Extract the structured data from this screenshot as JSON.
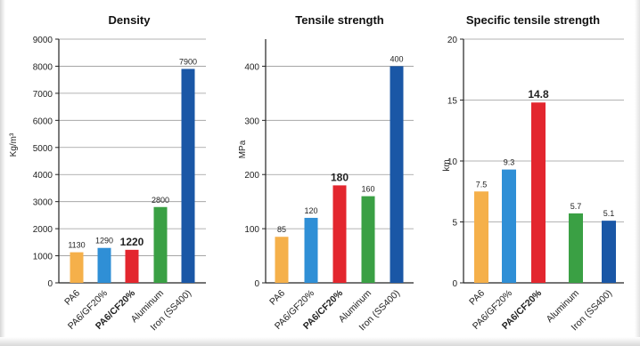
{
  "chart_data": [
    {
      "type": "bar",
      "title": "Density",
      "ylabel": "Kg/m³",
      "ylim": [
        0,
        9000
      ],
      "yticks": [
        "0",
        "1000",
        "2000",
        "3000",
        "4000",
        "5000",
        "6000",
        "7000",
        "8000",
        "9000"
      ],
      "grid": "horizontal",
      "categories": [
        "PA6",
        "PA6/GF20%",
        "PA6/CF20%",
        "Aluminum",
        "Iron (SS400)"
      ],
      "values": [
        1130,
        1290,
        1220,
        2800,
        7900
      ],
      "value_labels": [
        "1130",
        "1290",
        "1220",
        "2800",
        "7900"
      ],
      "highlight_index": 2,
      "colors": [
        "#f5b04a",
        "#2f8fd6",
        "#e3262e",
        "#3aa044",
        "#1a57a6"
      ]
    },
    {
      "type": "bar",
      "title": "Tensile strength",
      "ylabel": "MPa",
      "ylim": [
        0,
        450
      ],
      "yticks": [
        "0",
        "100",
        "200",
        "300",
        "400"
      ],
      "ytick_values": [
        0,
        100,
        200,
        300,
        400
      ],
      "grid": "horizontal",
      "categories": [
        "PA6",
        "PA6/GF20%",
        "PA6/CF20%",
        "Aluminum",
        "Iron (SS400)"
      ],
      "values": [
        85,
        120,
        180,
        160,
        400
      ],
      "value_labels": [
        "85",
        "120",
        "180",
        "160",
        "400"
      ],
      "highlight_index": 2,
      "colors": [
        "#f5b04a",
        "#2f8fd6",
        "#e3262e",
        "#3aa044",
        "#1a57a6"
      ]
    },
    {
      "type": "bar",
      "title": "Specific tensile strength",
      "ylabel": "km",
      "ylim": [
        0,
        20
      ],
      "yticks": [
        "0",
        "5",
        "10",
        "15",
        "20"
      ],
      "ytick_values": [
        0,
        5,
        10,
        15,
        20
      ],
      "grid": "horizontal",
      "categories": [
        "PA6",
        "PA6/GF20%",
        "PA6/CF20%",
        "Aluminum",
        "Iron (SS400)"
      ],
      "values": [
        7.5,
        9.3,
        14.8,
        5.7,
        5.1
      ],
      "value_labels": [
        "7.5",
        "9.3",
        "14.8",
        "5.7",
        "5.1"
      ],
      "highlight_index": 2,
      "colors": [
        "#f5b04a",
        "#2f8fd6",
        "#e3262e",
        "#3aa044",
        "#1a57a6"
      ]
    }
  ]
}
